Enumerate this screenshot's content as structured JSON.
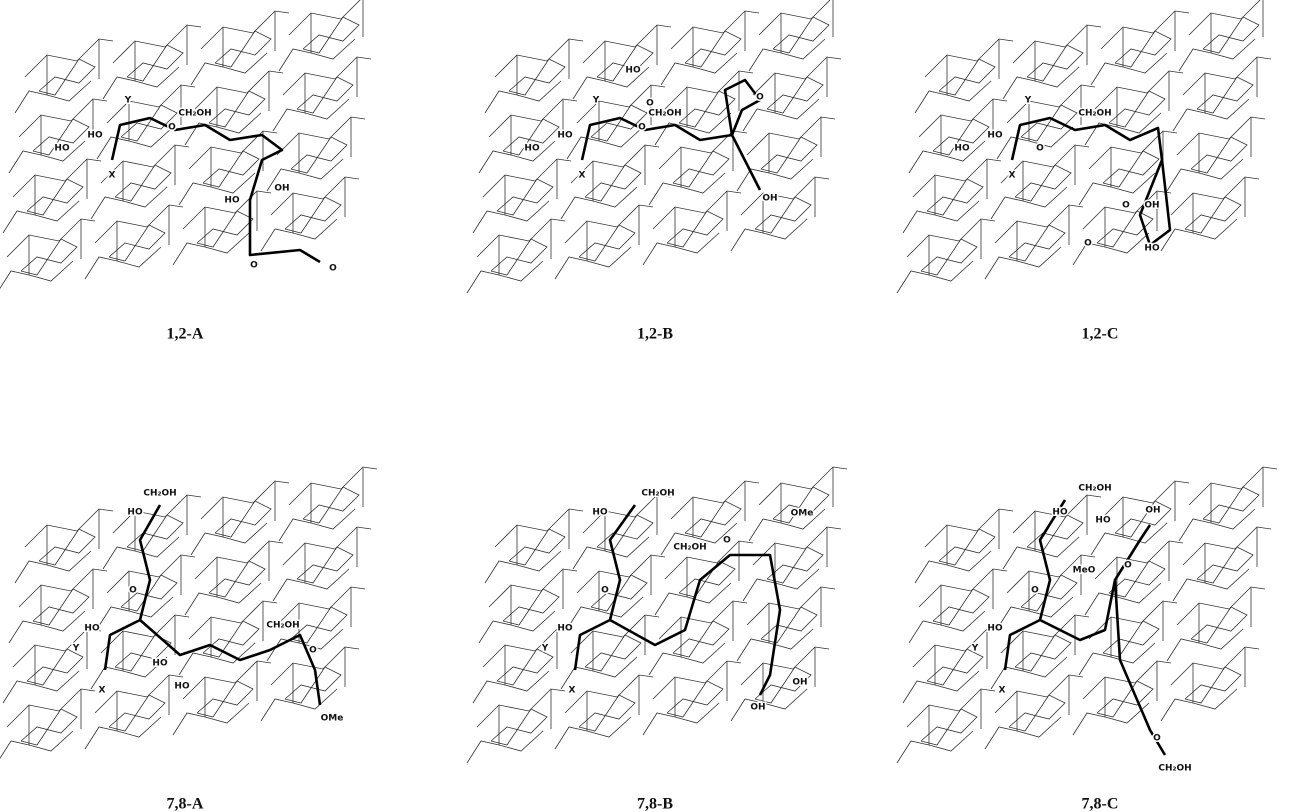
{
  "panels": [
    {
      "caption": "1,2-A",
      "labels": [
        "Y",
        "HO",
        "HO",
        "X",
        "CH₂OH",
        "O",
        "OH",
        "HO",
        "O",
        "O"
      ]
    },
    {
      "caption": "1,2-B",
      "labels": [
        "HO",
        "O",
        "O",
        "Y",
        "HO",
        "HO",
        "X",
        "CH₂OH",
        "O",
        "OH"
      ]
    },
    {
      "caption": "1,2-C",
      "labels": [
        "Y",
        "HO",
        "HO",
        "X",
        "CH₂OH",
        "O",
        "O",
        "O",
        "HO",
        "OH"
      ]
    },
    {
      "caption": "7,8-A",
      "labels": [
        "CH₂OH",
        "HO",
        "O",
        "HO",
        "Y",
        "X",
        "HO",
        "HO",
        "CH₂OH",
        "O",
        "OMe"
      ]
    },
    {
      "caption": "7,8-B",
      "labels": [
        "CH₂OH",
        "HO",
        "O",
        "CH₂OH",
        "O",
        "OMe",
        "HO",
        "Y",
        "X",
        "OH",
        "OH"
      ]
    },
    {
      "caption": "7,8-C",
      "labels": [
        "CH₂OH",
        "OH",
        "HO",
        "HO",
        "MeO",
        "O",
        "O",
        "HO",
        "Y",
        "X",
        "O",
        "CH₂OH"
      ]
    }
  ]
}
